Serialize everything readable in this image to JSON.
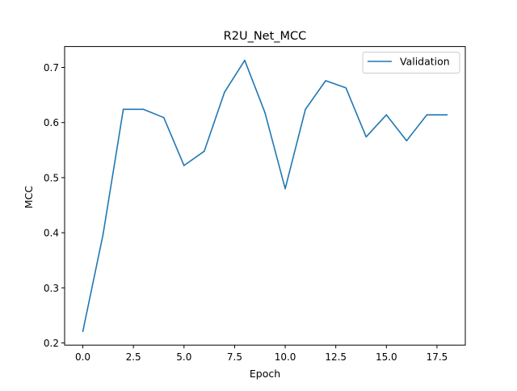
{
  "chart_data": {
    "type": "line",
    "title": "R2U_Net_MCC",
    "xlabel": "Epoch",
    "ylabel": "MCC",
    "xlim": [
      -0.9,
      18.9
    ],
    "ylim": [
      0.196,
      0.738
    ],
    "xticks": [
      0.0,
      2.5,
      5.0,
      7.5,
      10.0,
      12.5,
      15.0,
      17.5
    ],
    "xtick_labels": [
      "0.0",
      "2.5",
      "5.0",
      "7.5",
      "10.0",
      "12.5",
      "15.0",
      "17.5"
    ],
    "yticks": [
      0.2,
      0.3,
      0.4,
      0.5,
      0.6,
      0.7
    ],
    "ytick_labels": [
      "0.2",
      "0.3",
      "0.4",
      "0.5",
      "0.6",
      "0.7"
    ],
    "grid": false,
    "legend_position": "upper right",
    "series": [
      {
        "name": "Validation",
        "color": "#1f77b4",
        "x": [
          0,
          1,
          2,
          3,
          4,
          5,
          6,
          7,
          8,
          9,
          10,
          11,
          12,
          13,
          14,
          15,
          16,
          17,
          18
        ],
        "values": [
          0.221,
          0.397,
          0.624,
          0.624,
          0.609,
          0.522,
          0.548,
          0.655,
          0.713,
          0.618,
          0.48,
          0.624,
          0.676,
          0.663,
          0.574,
          0.614,
          0.567,
          0.614,
          0.614
        ]
      }
    ]
  }
}
